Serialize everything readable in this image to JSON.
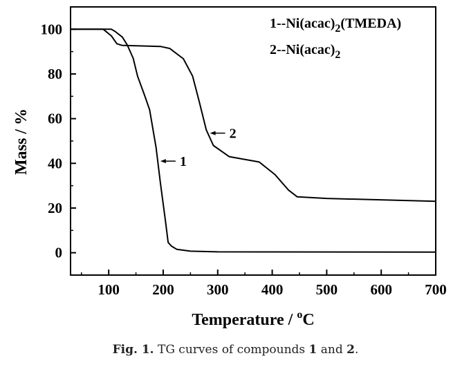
{
  "chart_data": {
    "type": "line",
    "xlabel": "Temperature / ",
    "xlabel_sup": "o",
    "xlabel_unit": "C",
    "ylabel": "Mass / %",
    "xlim": [
      30,
      700
    ],
    "ylim": [
      -10,
      110
    ],
    "xticks": [
      100,
      200,
      300,
      400,
      500,
      600,
      700
    ],
    "yticks": [
      0,
      20,
      40,
      60,
      80,
      100
    ],
    "legend": [
      {
        "prefix": "1--Ni(acac)",
        "sub": "2",
        "suffix": "(TMEDA)"
      },
      {
        "prefix": "2--Ni(acac)",
        "sub": "2",
        "suffix": ""
      }
    ],
    "legend_position": "top-right",
    "series": [
      {
        "name": "1",
        "label": "1",
        "annotation_at": [
          191,
          41
        ],
        "x": [
          30,
          105,
          112,
          125,
          134,
          145,
          153,
          165,
          175,
          187,
          195,
          204,
          209,
          215,
          225,
          250,
          300,
          700
        ],
        "y": [
          100,
          100,
          99,
          96.5,
          93,
          87,
          79,
          71,
          64,
          47,
          31,
          14.5,
          4.6,
          3,
          1.5,
          0.7,
          0.4,
          0.3
        ]
      },
      {
        "name": "2",
        "label": "2",
        "annotation_at": [
          282,
          53.5
        ],
        "x": [
          30,
          90,
          105,
          115,
          124,
          195,
          212,
          237,
          254,
          266,
          279,
          292,
          321,
          376,
          405,
          430,
          446,
          500,
          700
        ],
        "y": [
          100,
          100,
          97,
          93.5,
          92.8,
          92.3,
          91.4,
          86.8,
          79,
          67.7,
          55,
          48,
          43,
          40.6,
          35,
          28,
          25,
          24.3,
          23
        ]
      }
    ]
  },
  "caption": {
    "fig": "Fig. 1.",
    "text1": " TG curves of compounds ",
    "n1": "1",
    "and": " and ",
    "n2": "2",
    "end": "."
  }
}
